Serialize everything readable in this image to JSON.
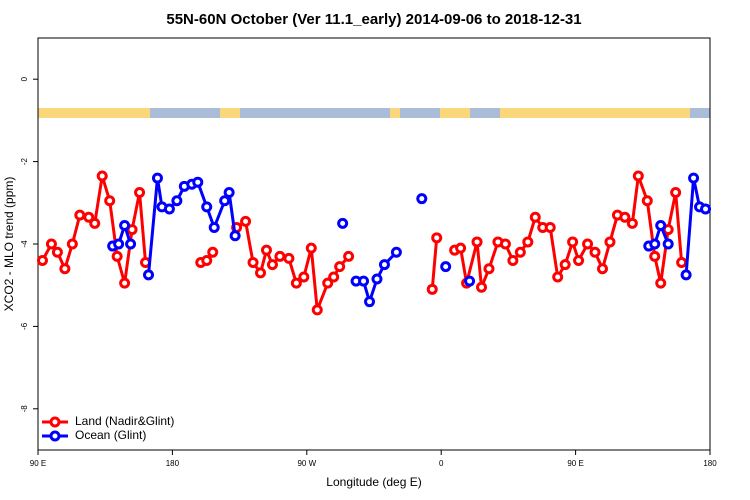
{
  "chart_data": {
    "type": "line",
    "title": "55N-60N October (Ver 11.1_early)   2014-09-06 to 2018-12-31",
    "x_label": "Longitude (deg E)",
    "y_label": "XCO2 - MLO trend (ppm)",
    "xlim": [
      90,
      540
    ],
    "ylim": [
      -9,
      1
    ],
    "xticks": [
      {
        "value": 90,
        "label": "90 E"
      },
      {
        "value": 180,
        "label": "180"
      },
      {
        "value": 270,
        "label": "90 W"
      },
      {
        "value": 360,
        "label": "0"
      },
      {
        "value": 450,
        "label": "90 E"
      },
      {
        "value": 540,
        "label": "180"
      }
    ],
    "yticks": [
      0,
      -2,
      -4,
      -6,
      -8
    ],
    "legend": "bottom-left",
    "series": [
      {
        "name": "Land (Nadir&Glint)",
        "color": "#ff0000",
        "x": [
          93,
          99,
          103,
          108,
          113,
          118,
          124,
          128,
          133,
          138,
          143,
          148,
          153,
          158,
          162,
          null,
          199,
          203,
          207,
          null,
          223,
          229,
          234,
          239,
          243,
          247,
          252,
          258,
          263,
          268,
          273,
          277,
          284,
          288,
          292,
          298,
          null,
          354,
          357,
          null,
          369,
          373,
          377,
          384,
          387,
          392,
          398,
          403,
          408,
          413,
          418,
          423,
          428,
          433,
          438,
          443,
          448,
          452,
          458,
          463,
          468,
          473,
          478,
          483,
          488,
          492,
          498,
          503,
          507,
          512,
          517,
          521
        ],
        "values": [
          -4.4,
          -4.0,
          -4.2,
          -4.6,
          -4.0,
          -3.3,
          -3.35,
          -3.5,
          -2.35,
          -2.95,
          -4.3,
          -4.95,
          -3.65,
          -2.75,
          -4.45,
          null,
          -4.45,
          -4.4,
          -4.2,
          null,
          -3.6,
          -3.45,
          -4.45,
          -4.7,
          -4.15,
          -4.5,
          -4.3,
          -4.35,
          -4.95,
          -4.8,
          -4.1,
          -5.6,
          -4.95,
          -4.8,
          -4.55,
          -4.3,
          null,
          -5.1,
          -3.85,
          null,
          -4.15,
          -4.1,
          -4.95,
          -3.95,
          -5.05,
          -4.6,
          -3.95,
          -4.0,
          -4.4,
          -4.2,
          -3.95,
          -3.35,
          -3.6,
          -3.6,
          -4.8,
          -4.5,
          -3.95,
          -4.4,
          -4.0,
          -4.2,
          -4.6,
          -3.95,
          -3.3,
          -3.35,
          -3.5,
          -2.35,
          -2.95,
          -4.3,
          -4.95,
          -3.65,
          -2.75,
          -4.45
        ]
      },
      {
        "name": "Ocean (Glint)",
        "color": "#0000ff",
        "x": [
          140,
          144,
          148,
          152,
          null,
          164,
          170,
          173,
          178,
          183,
          188,
          193,
          197,
          203,
          208,
          215,
          218,
          222,
          null,
          294,
          null,
          303,
          308,
          312,
          317,
          322,
          330,
          null,
          347,
          null,
          363,
          null,
          379,
          null,
          499,
          503,
          507,
          512,
          null,
          524,
          529,
          533,
          537
        ],
        "values": [
          -4.05,
          -4.0,
          -3.55,
          -4.0,
          null,
          -4.75,
          -2.4,
          -3.1,
          -3.15,
          -2.95,
          -2.6,
          -2.55,
          -2.5,
          -3.1,
          -3.6,
          -2.95,
          -2.75,
          -3.8,
          null,
          -3.5,
          null,
          -4.9,
          -4.9,
          -5.4,
          -4.85,
          -4.5,
          -4.2,
          null,
          -2.9,
          null,
          -4.55,
          null,
          -4.9,
          null,
          -4.05,
          -4.0,
          -3.55,
          -4.0,
          null,
          -4.75,
          -2.4,
          -3.1,
          -3.15
        ]
      }
    ]
  }
}
